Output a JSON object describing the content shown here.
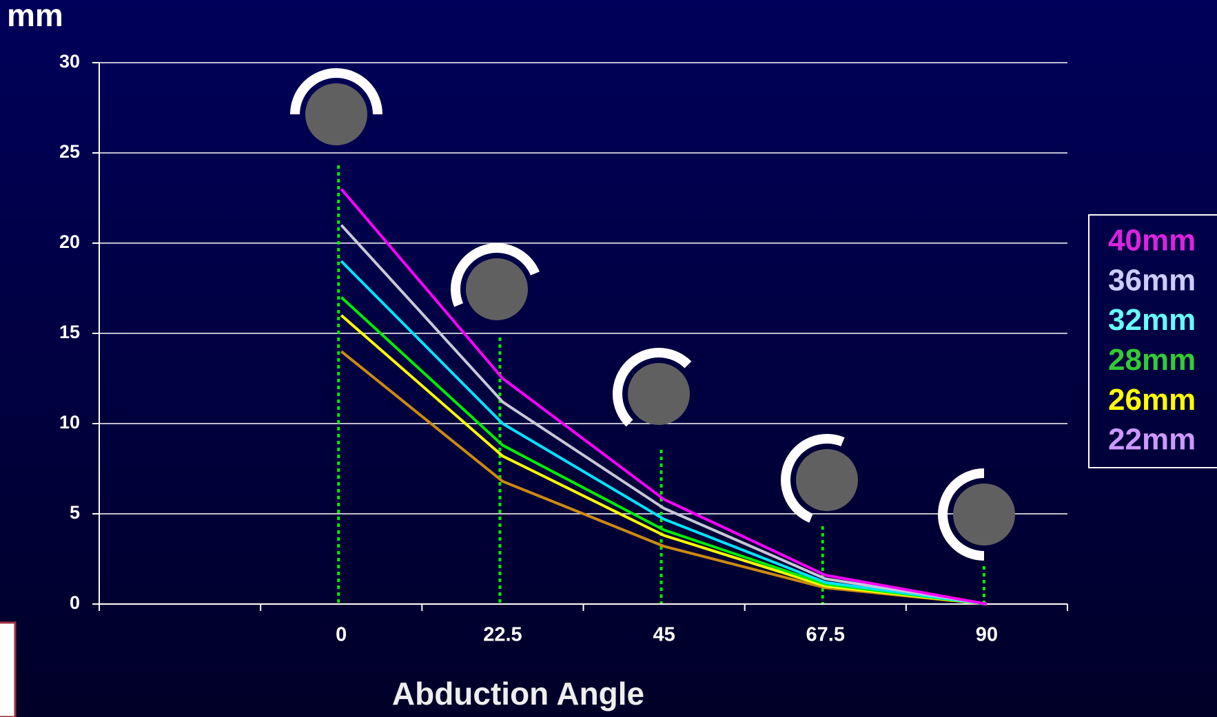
{
  "chart_data": {
    "type": "line",
    "y_axis_label": "mm",
    "x_axis_label": "Abduction Angle",
    "categories": [
      null,
      "0",
      "22.5",
      "45",
      "67.5",
      "90"
    ],
    "series": [
      {
        "name": "40mm",
        "color": "#ff00ff",
        "legend_color": "#dd22dd",
        "values": [
          null,
          23,
          12.5,
          5.8,
          1.6,
          0
        ]
      },
      {
        "name": "36mm",
        "color": "#c8c8d8",
        "legend_color": "#ccccff",
        "values": [
          null,
          21,
          11.2,
          5.3,
          1.4,
          0
        ]
      },
      {
        "name": "32mm",
        "color": "#00e5ff",
        "legend_color": "#66ffff",
        "values": [
          null,
          19,
          10,
          4.7,
          1.2,
          0
        ]
      },
      {
        "name": "28mm",
        "color": "#00ee00",
        "legend_color": "#33cc33",
        "values": [
          null,
          17,
          8.8,
          4.1,
          1.1,
          0
        ]
      },
      {
        "name": "26mm",
        "color": "#ffff00",
        "legend_color": "#ffff00",
        "values": [
          null,
          16,
          8.2,
          3.8,
          1.0,
          0
        ]
      },
      {
        "name": "22mm",
        "color": "#cc8a10",
        "legend_color": "#cc99ff",
        "values": [
          null,
          14,
          6.8,
          3.2,
          0.9,
          0
        ]
      }
    ],
    "ylim": [
      0,
      30
    ],
    "yticks": [
      0,
      5,
      10,
      15,
      20,
      25,
      30
    ],
    "grid": true,
    "legend": "right"
  }
}
